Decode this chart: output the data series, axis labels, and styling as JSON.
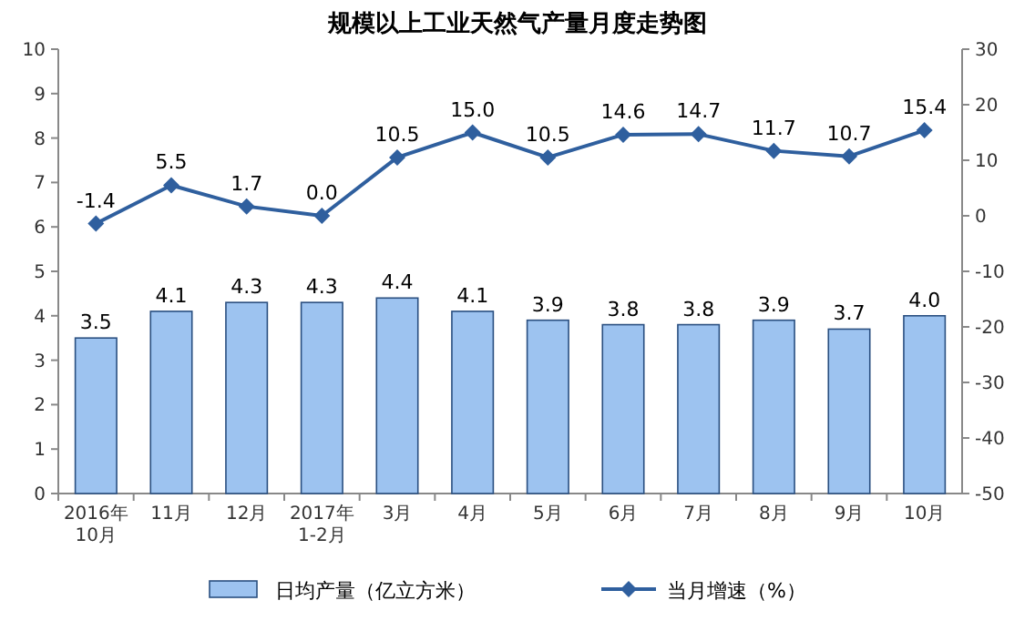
{
  "chart_data": {
    "type": "bar",
    "title": "规模以上工业天然气产量月度走势图",
    "categories": [
      "2016年\n10月",
      "11月",
      "12月",
      "2017年\n1-2月",
      "3月",
      "4月",
      "5月",
      "6月",
      "7月",
      "8月",
      "9月",
      "10月"
    ],
    "series": [
      {
        "name": "日均产量（亿立方米）",
        "color": "#9dc3f0",
        "values": [
          3.5,
          4.1,
          4.3,
          4.3,
          4.4,
          4.1,
          3.9,
          3.8,
          3.8,
          3.9,
          3.7,
          4.0
        ],
        "value_labels": [
          "3.5",
          "4.1",
          "4.3",
          "4.3",
          "4.4",
          "4.1",
          "3.9",
          "3.8",
          "3.8",
          "3.9",
          "3.7",
          "4.0"
        ]
      },
      {
        "name": "当月增速（%）",
        "type": "line",
        "axis": "y2",
        "color": "#2f5f9e",
        "marker": "diamond",
        "values": [
          -1.4,
          5.5,
          1.7,
          0.0,
          10.5,
          15.0,
          10.5,
          14.6,
          14.7,
          11.7,
          10.7,
          15.4
        ],
        "value_labels": [
          "-1.4",
          "5.5",
          "1.7",
          "0.0",
          "10.5",
          "15.0",
          "10.5",
          "14.6",
          "14.7",
          "11.7",
          "10.7",
          "15.4"
        ]
      }
    ],
    "ylim": [
      0,
      10
    ],
    "yticks": [
      0,
      1,
      2,
      3,
      4,
      5,
      6,
      7,
      8,
      9,
      10
    ],
    "y2lim": [
      -50,
      30
    ],
    "y2ticks": [
      -50,
      -40,
      -30,
      -20,
      -10,
      0,
      10,
      20,
      30
    ],
    "legend": "bottom",
    "grid": false
  }
}
